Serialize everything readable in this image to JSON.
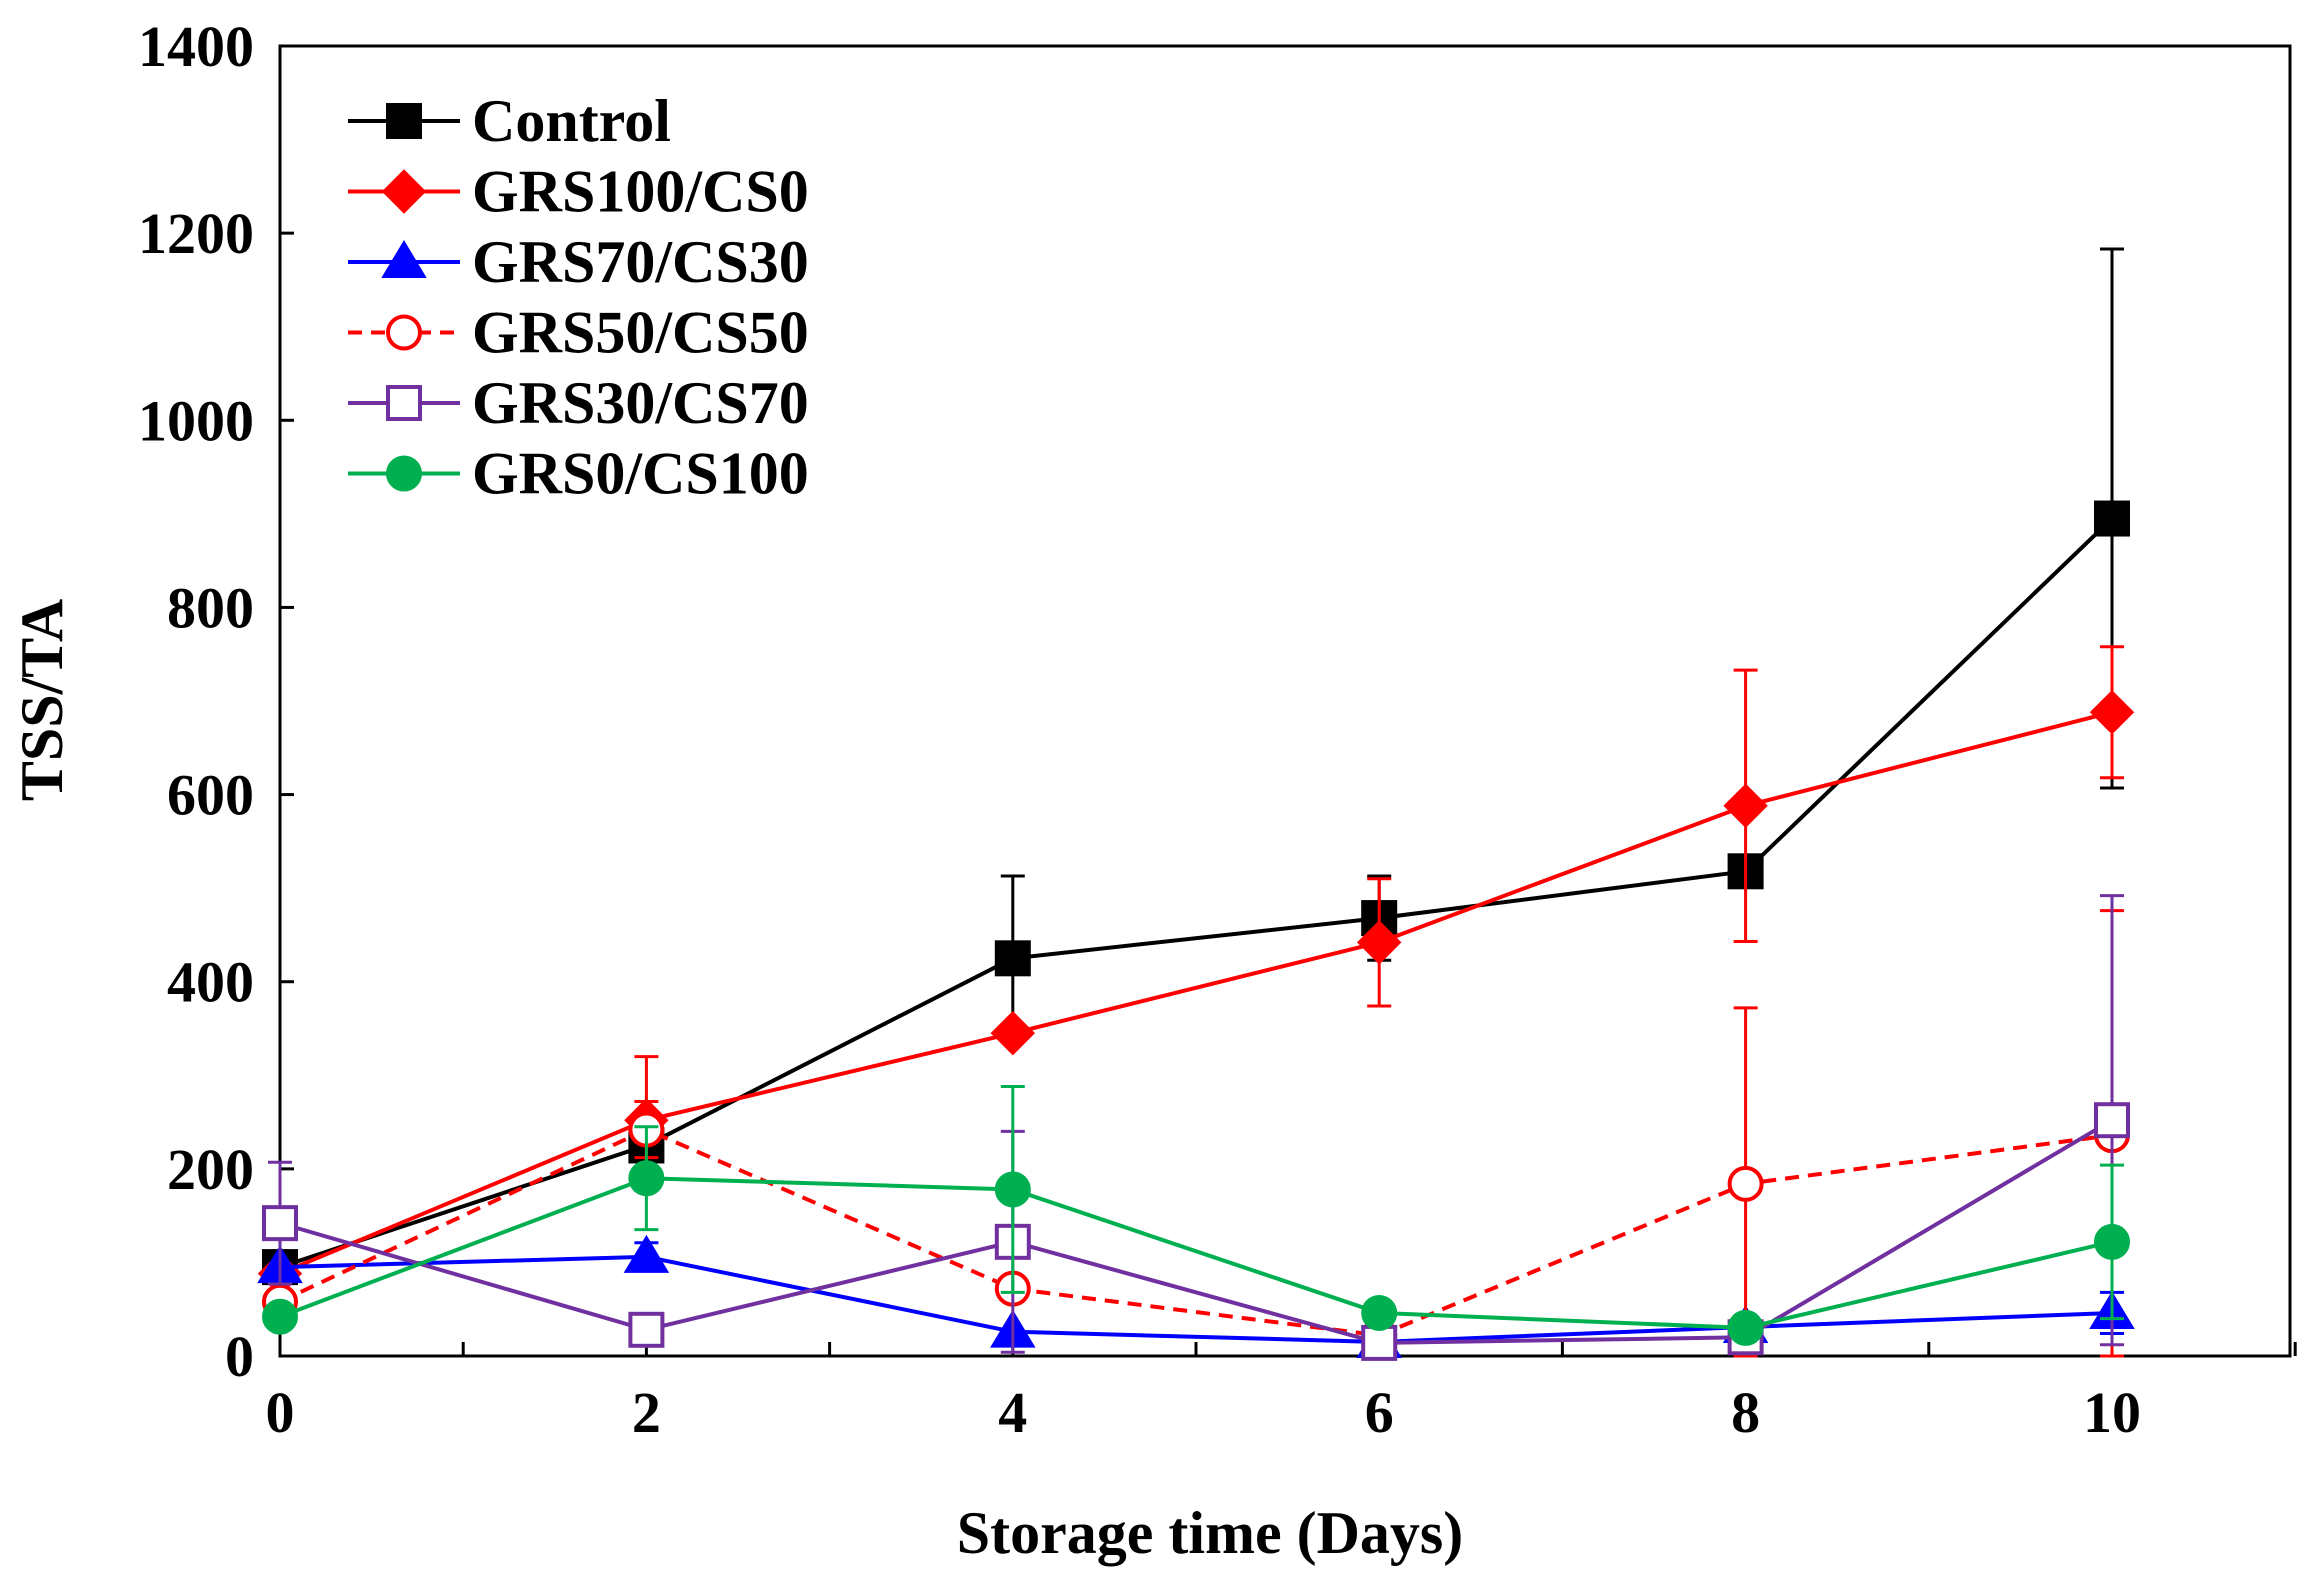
{
  "chart_data": {
    "type": "line",
    "title": "",
    "xlabel": "Storage time (Days)",
    "ylabel": "TSS/TA",
    "xlim": [
      0,
      11
    ],
    "ylim": [
      0,
      1400
    ],
    "xticks": [
      0,
      2,
      4,
      6,
      8,
      10
    ],
    "yticks": [
      0,
      200,
      400,
      600,
      800,
      1000,
      1200,
      1400
    ],
    "legend_position": "top-left",
    "grid": false,
    "x": [
      0,
      2,
      4,
      6,
      8,
      10
    ],
    "series": [
      {
        "name": "Control",
        "color": "#000000",
        "marker": "square-filled",
        "dashed": false,
        "values": [
          95,
          225,
          425,
          468,
          518,
          895
        ],
        "errors": [
          0,
          0,
          88,
          45,
          0,
          288
        ]
      },
      {
        "name": "GRS100/CS0",
        "color": "#ff0000",
        "marker": "diamond-filled",
        "dashed": false,
        "values": [
          88,
          252,
          345,
          442,
          588,
          688
        ],
        "errors": [
          0,
          68,
          0,
          68,
          145,
          70
        ]
      },
      {
        "name": "GRS70/CS30",
        "color": "#0000ff",
        "marker": "triangle-filled",
        "dashed": false,
        "values": [
          95,
          106,
          26,
          15,
          31,
          46
        ],
        "errors": [
          0,
          15,
          0,
          0,
          0,
          22
        ]
      },
      {
        "name": "GRS50/CS50",
        "color": "#ff0000",
        "marker": "circle-open",
        "dashed": true,
        "values": [
          58,
          242,
          72,
          22,
          184,
          236
        ],
        "errors": [
          0,
          30,
          0,
          0,
          188,
          240
        ]
      },
      {
        "name": "GRS30/CS70",
        "color": "#7030a0",
        "marker": "square-open",
        "dashed": false,
        "values": [
          142,
          28,
          122,
          14,
          20,
          252
        ],
        "errors": [
          65,
          0,
          118,
          0,
          0,
          240
        ]
      },
      {
        "name": "GRS0/CS100",
        "color": "#00b050",
        "marker": "circle-filled",
        "dashed": false,
        "values": [
          42,
          190,
          178,
          46,
          30,
          122
        ],
        "errors": [
          0,
          55,
          110,
          0,
          0,
          82
        ]
      }
    ]
  }
}
